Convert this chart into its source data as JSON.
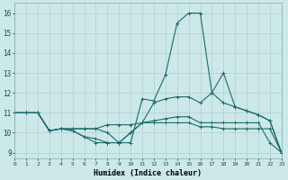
{
  "xlabel": "Humidex (Indice chaleur)",
  "xlim": [
    0,
    23
  ],
  "ylim": [
    8.7,
    16.5
  ],
  "xticks": [
    0,
    1,
    2,
    3,
    4,
    5,
    6,
    7,
    8,
    9,
    10,
    11,
    12,
    13,
    14,
    15,
    16,
    17,
    18,
    19,
    20,
    21,
    22,
    23
  ],
  "yticks": [
    9,
    10,
    11,
    12,
    13,
    14,
    15,
    16
  ],
  "background_color": "#cde8e8",
  "grid_color": "#b0d0d0",
  "line_color": "#1a6b6b",
  "lines": [
    [
      11.0,
      11.0,
      11.0,
      10.1,
      10.2,
      10.2,
      10.2,
      10.2,
      10.0,
      9.5,
      9.5,
      11.7,
      11.6,
      12.9,
      15.5,
      16.0,
      16.0,
      12.0,
      13.0,
      11.3,
      11.1,
      10.9,
      10.6,
      9.0
    ],
    [
      11.0,
      11.0,
      11.0,
      10.1,
      10.2,
      10.1,
      9.8,
      9.7,
      9.5,
      9.5,
      10.0,
      10.5,
      10.5,
      10.5,
      10.5,
      10.5,
      10.3,
      10.3,
      10.2,
      10.2,
      10.2,
      10.2,
      10.2,
      9.0
    ],
    [
      11.0,
      11.0,
      11.0,
      10.1,
      10.2,
      10.2,
      10.2,
      10.2,
      10.4,
      10.4,
      10.4,
      10.5,
      10.6,
      10.7,
      10.8,
      10.8,
      10.5,
      10.5,
      10.5,
      10.5,
      10.5,
      10.5,
      9.5,
      9.0
    ],
    [
      11.0,
      11.0,
      11.0,
      10.1,
      10.2,
      10.1,
      9.8,
      9.5,
      9.5,
      9.5,
      10.0,
      10.5,
      11.5,
      11.7,
      11.8,
      11.8,
      11.5,
      12.0,
      11.5,
      11.3,
      11.1,
      10.9,
      10.6,
      9.0
    ]
  ],
  "xlabel_fontsize": 6.0,
  "xtick_fontsize": 4.5,
  "ytick_fontsize": 5.5
}
